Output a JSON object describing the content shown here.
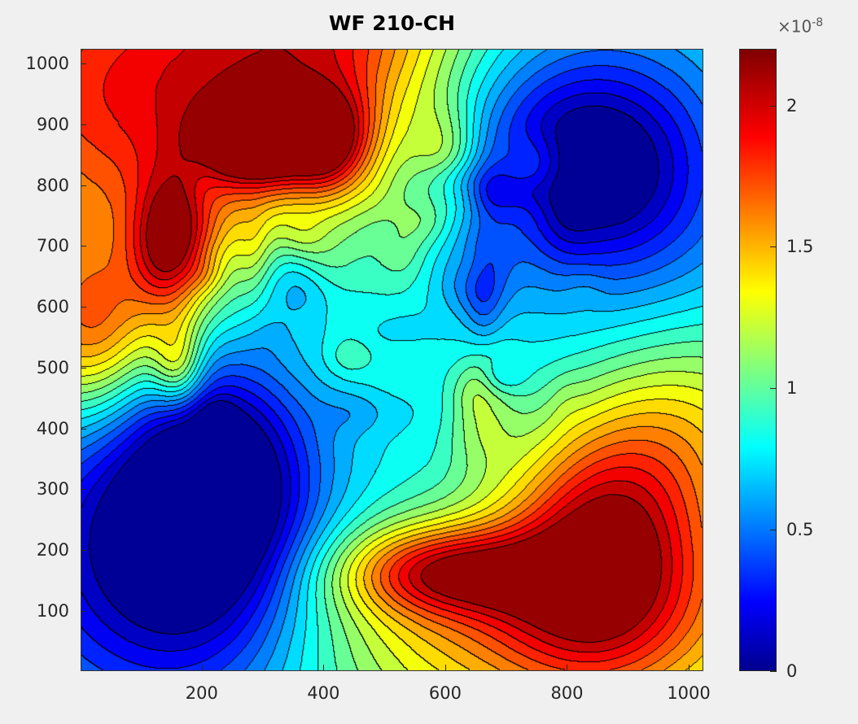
{
  "chart_data": {
    "type": "heatmap",
    "subtype": "filled-contour",
    "title": "WF 210-CH",
    "xlim": [
      1,
      1024
    ],
    "ylim": [
      1,
      1024
    ],
    "xticks": [
      "200",
      "400",
      "600",
      "800",
      "1000"
    ],
    "xtick_values": [
      200,
      400,
      600,
      800,
      1000
    ],
    "yticks": [
      "100",
      "200",
      "300",
      "400",
      "500",
      "600",
      "700",
      "800",
      "900",
      "1000"
    ],
    "ytick_values": [
      100,
      200,
      300,
      400,
      500,
      600,
      700,
      800,
      900,
      1000
    ],
    "colormap": "jet",
    "clim": [
      0,
      2.2
    ],
    "colorbar_ticks": [
      "0",
      "0.5",
      "1",
      "1.5",
      "2"
    ],
    "colorbar_tick_values": [
      0,
      0.5,
      1,
      1.5,
      2
    ],
    "colorbar_multiplier": "×10",
    "colorbar_exponent": "-8",
    "contour_step": 0.1,
    "field_baseline": 1.0,
    "field_features": [
      {
        "x": 100,
        "y": 950,
        "amp": 0.9,
        "sx": 250,
        "sy": 200
      },
      {
        "x": 300,
        "y": 870,
        "amp": 1.0,
        "sx": 70,
        "sy": 50
      },
      {
        "x": 420,
        "y": 880,
        "amp": 0.55,
        "sx": 50,
        "sy": 60
      },
      {
        "x": 150,
        "y": 700,
        "amp": 0.9,
        "sx": 45,
        "sy": 80
      },
      {
        "x": 420,
        "y": 1060,
        "amp": 0.7,
        "sx": 160,
        "sy": 150
      },
      {
        "x": 820,
        "y": 820,
        "amp": -0.6,
        "sx": 110,
        "sy": 100
      },
      {
        "x": 960,
        "y": 700,
        "amp": -0.45,
        "sx": 150,
        "sy": 250
      },
      {
        "x": 760,
        "y": 930,
        "amp": -0.4,
        "sx": 200,
        "sy": 140
      },
      {
        "x": 220,
        "y": 310,
        "amp": -0.95,
        "sx": 110,
        "sy": 150
      },
      {
        "x": 60,
        "y": 250,
        "amp": -0.6,
        "sx": 200,
        "sy": 160
      },
      {
        "x": 150,
        "y": 40,
        "amp": -0.5,
        "sx": 200,
        "sy": 150
      },
      {
        "x": 600,
        "y": 500,
        "amp": -0.2,
        "sx": 250,
        "sy": 250
      },
      {
        "x": 850,
        "y": 220,
        "amp": 0.95,
        "sx": 110,
        "sy": 150
      },
      {
        "x": 600,
        "y": 165,
        "amp": 0.8,
        "sx": 120,
        "sy": 50
      },
      {
        "x": 750,
        "y": 90,
        "amp": 0.7,
        "sx": 280,
        "sy": 120
      },
      {
        "x": 990,
        "y": 400,
        "amp": 0.6,
        "sx": 120,
        "sy": 150
      },
      {
        "x": 20,
        "y": 560,
        "amp": 0.7,
        "sx": 80,
        "sy": 100
      },
      {
        "x": 160,
        "y": 500,
        "amp": 0.55,
        "sx": 30,
        "sy": 50
      },
      {
        "x": 650,
        "y": 640,
        "amp": -0.3,
        "sx": 40,
        "sy": 40
      },
      {
        "x": 660,
        "y": 420,
        "amp": 0.3,
        "sx": 40,
        "sy": 60
      },
      {
        "x": 600,
        "y": 850,
        "amp": 0.35,
        "sx": 40,
        "sy": 60
      }
    ]
  }
}
